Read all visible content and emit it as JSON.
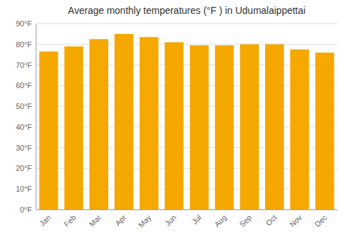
{
  "chart_data": {
    "type": "bar",
    "title": "Average monthly temperatures (°F ) in Udumalaippettai",
    "categories": [
      "Jan",
      "Feb",
      "Mar",
      "Apr",
      "May",
      "Jun",
      "Jul",
      "Aug",
      "Sep",
      "Oct",
      "Nov",
      "Dec"
    ],
    "values": [
      76.5,
      79.0,
      82.5,
      85.0,
      83.5,
      81.0,
      79.5,
      79.5,
      80.0,
      80.0,
      77.5,
      76.0
    ],
    "color": "#F5A800",
    "ylim": [
      0,
      90
    ],
    "yticks": [
      {
        "value": 0,
        "label": "0°F"
      },
      {
        "value": 10,
        "label": "10°F"
      },
      {
        "value": 20,
        "label": "20°F"
      },
      {
        "value": 30,
        "label": "30°F"
      },
      {
        "value": 40,
        "label": "40°F"
      },
      {
        "value": 50,
        "label": "50°F"
      },
      {
        "value": 60,
        "label": "60°F"
      },
      {
        "value": 70,
        "label": "70°F"
      },
      {
        "value": 80,
        "label": "80°F"
      },
      {
        "value": 90,
        "label": "90°F"
      }
    ],
    "grid": true
  }
}
